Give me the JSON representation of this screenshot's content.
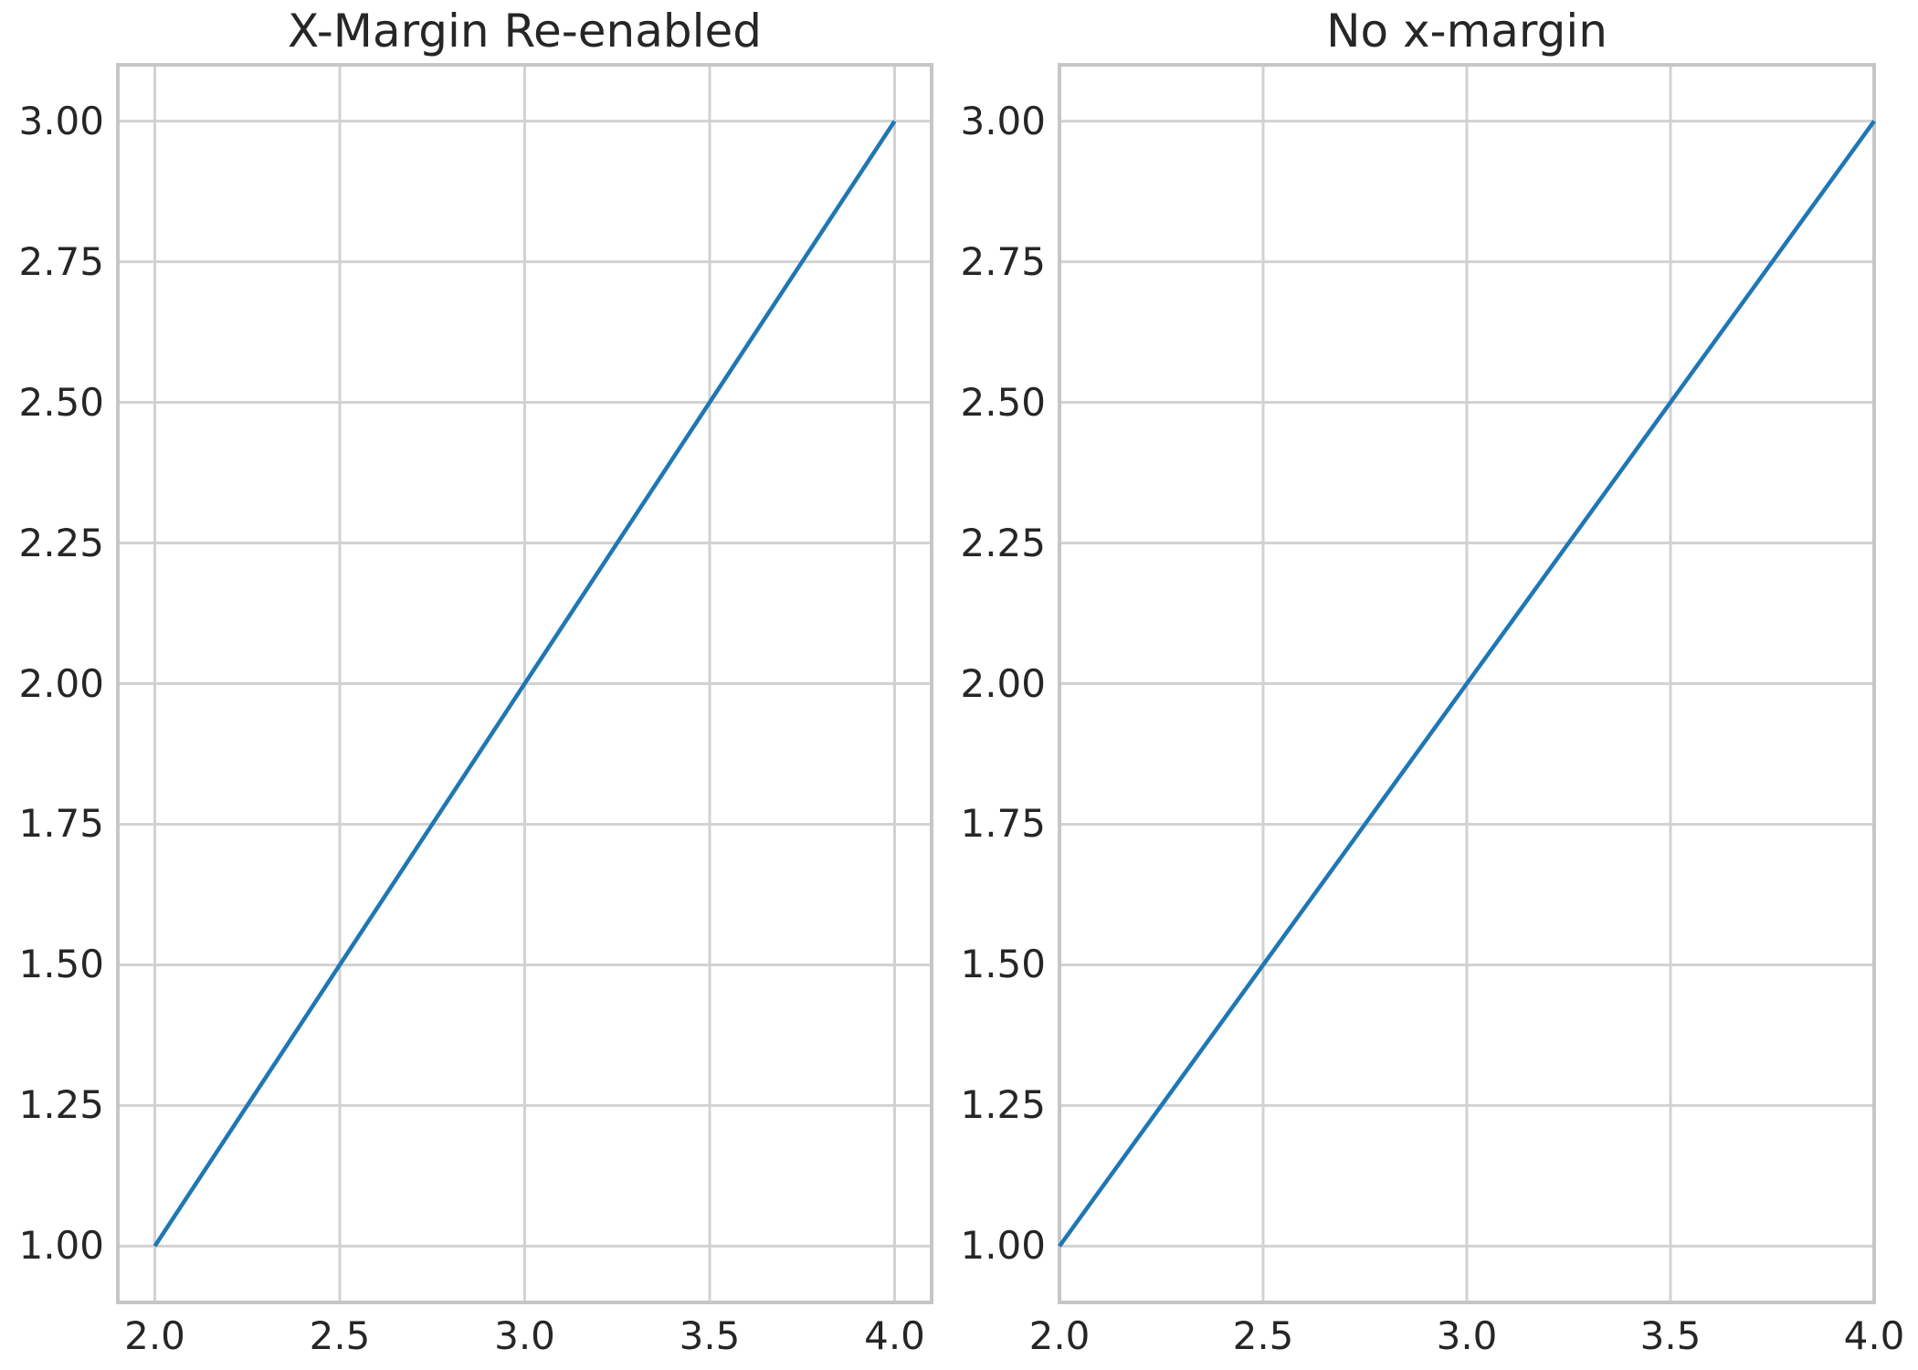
{
  "figure": {
    "background": "#ffffff",
    "text_color": "#262626",
    "grid_color": "#d2d2d2",
    "spine_color": "#c6c6c6"
  },
  "chart_data": [
    {
      "type": "line",
      "title": "X-Margin Re-enabled",
      "x": [
        2.0,
        4.0
      ],
      "y": [
        1.0,
        3.0
      ],
      "xlim": [
        1.9,
        4.1
      ],
      "ylim": [
        0.9,
        3.1
      ],
      "xticks": [
        2.0,
        2.5,
        3.0,
        3.5,
        4.0
      ],
      "xtick_labels": [
        "2.0",
        "2.5",
        "3.0",
        "3.5",
        "4.0"
      ],
      "yticks": [
        1.0,
        1.25,
        1.5,
        1.75,
        2.0,
        2.25,
        2.5,
        2.75,
        3.0
      ],
      "ytick_labels": [
        "1.00",
        "1.25",
        "1.50",
        "1.75",
        "2.00",
        "2.25",
        "2.50",
        "2.75",
        "3.00"
      ],
      "line_color": "#1f77b4",
      "grid": true,
      "legend": null,
      "xlabel": "",
      "ylabel": ""
    },
    {
      "type": "line",
      "title": "No x-margin",
      "x": [
        2.0,
        4.0
      ],
      "y": [
        1.0,
        3.0
      ],
      "xlim": [
        2.0,
        4.0
      ],
      "ylim": [
        0.9,
        3.1
      ],
      "xticks": [
        2.0,
        2.5,
        3.0,
        3.5,
        4.0
      ],
      "xtick_labels": [
        "2.0",
        "2.5",
        "3.0",
        "3.5",
        "4.0"
      ],
      "yticks": [
        1.0,
        1.25,
        1.5,
        1.75,
        2.0,
        2.25,
        2.5,
        2.75,
        3.0
      ],
      "ytick_labels": [
        "1.00",
        "1.25",
        "1.50",
        "1.75",
        "2.00",
        "2.25",
        "2.50",
        "2.75",
        "3.00"
      ],
      "line_color": "#1f77b4",
      "grid": true,
      "legend": null,
      "xlabel": "",
      "ylabel": ""
    }
  ]
}
